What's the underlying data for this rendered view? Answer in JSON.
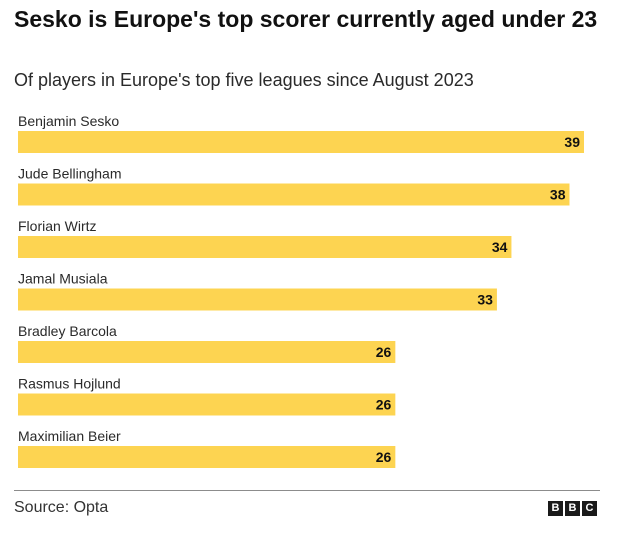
{
  "header": {
    "title": "Sesko is Europe's top scorer currently aged under 23",
    "subtitle": "Of players in Europe's top five leagues since August 2023"
  },
  "footer": {
    "source": "Source: Opta",
    "logo_letters": [
      "B",
      "B",
      "C"
    ]
  },
  "colors": {
    "bar": "#fdd451"
  },
  "chart_data": {
    "type": "bar",
    "orientation": "horizontal",
    "title": "Sesko is Europe's top scorer currently aged under 23",
    "subtitle": "Of players in Europe's top five leagues since August 2023",
    "categories": [
      "Benjamin Sesko",
      "Jude Bellingham",
      "Florian Wirtz",
      "Jamal Musiala",
      "Bradley Barcola",
      "Rasmus Hojlund",
      "Maximilian Beier"
    ],
    "values": [
      39,
      38,
      34,
      33,
      26,
      26,
      26
    ],
    "xlabel": "",
    "ylabel": "",
    "xlim": [
      0,
      39
    ],
    "grid": false,
    "legend": "none"
  }
}
